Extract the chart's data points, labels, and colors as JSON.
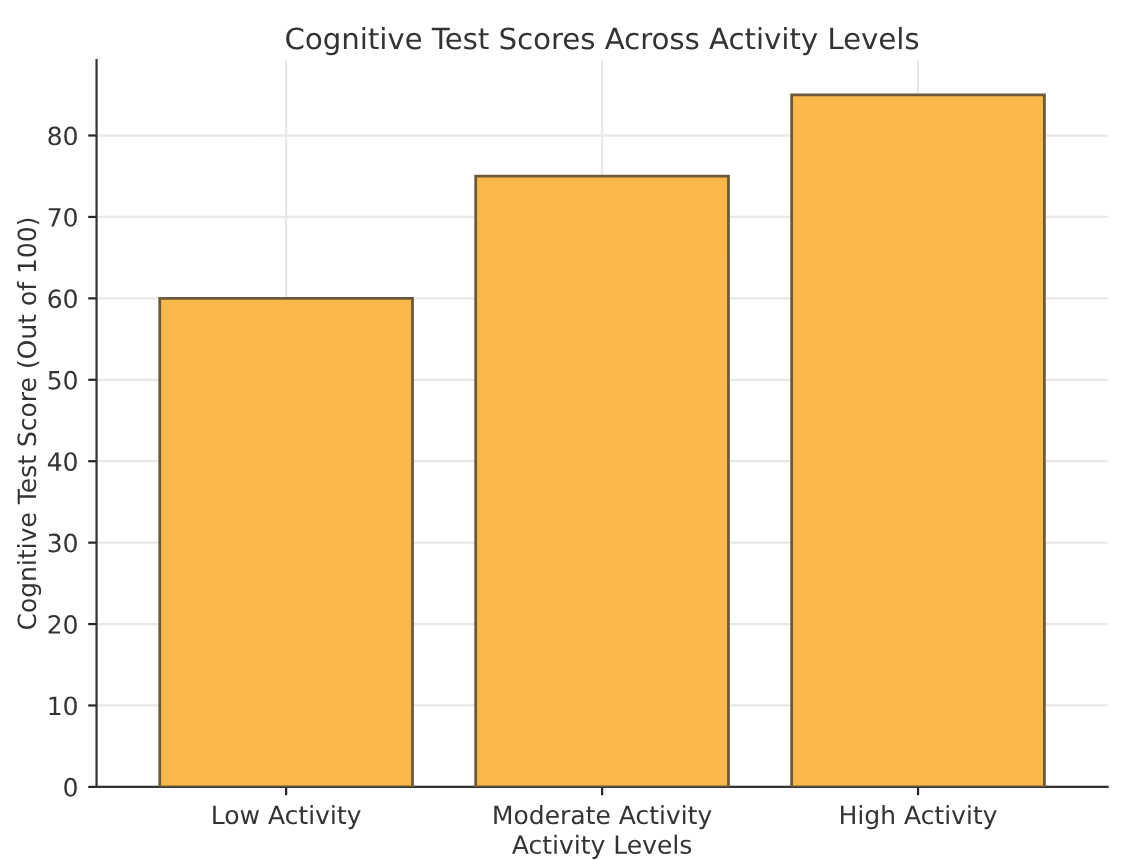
{
  "chart_data": {
    "type": "bar",
    "title": "Cognitive Test Scores Across Activity Levels",
    "xlabel": "Activity Levels",
    "ylabel": "Cognitive Test Score (Out of 100)",
    "categories": [
      "Low Activity",
      "Moderate Activity",
      "High Activity"
    ],
    "values": [
      60,
      75,
      85
    ],
    "color": "#fbb84a",
    "ylim": [
      0,
      89.25
    ],
    "yticks": [
      0,
      10,
      20,
      30,
      40,
      50,
      60,
      70,
      80
    ],
    "grid": true
  }
}
